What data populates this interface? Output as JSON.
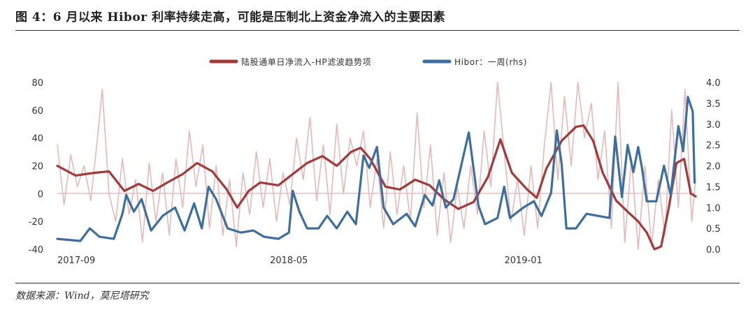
{
  "header": {
    "title": "图 4：6 月以来 Hibor 利率持续走高，可能是压制北上资金净流入的主要因素"
  },
  "footer": {
    "source": "数据来源：Wind，莫尼塔研究"
  },
  "colors": {
    "raw_flow": "#e3b9b9",
    "trend": "#a23a3a",
    "hibor": "#3d6e9e",
    "zero_line": "#e0b3b3"
  },
  "chart_data": {
    "type": "line",
    "x": {
      "start": "2017-09-01",
      "end": "2019-06-30",
      "tick_labels": [
        "2017-09",
        "2018-05",
        "2019-01"
      ],
      "tick_dates": [
        "2017-09-01",
        "2018-05-01",
        "2019-01-01"
      ]
    },
    "y_left": {
      "ylim": [
        -40,
        80
      ],
      "ticks": [
        "-40",
        "-20",
        "0",
        "20",
        "40",
        "60",
        "80"
      ]
    },
    "y_right": {
      "ylim": [
        0,
        4
      ],
      "ticks": [
        "0.0",
        "0.5",
        "1.0",
        "1.5",
        "2.0",
        "2.5",
        "3.0",
        "3.5",
        "4.0"
      ]
    },
    "legend": {
      "position": "top-center",
      "entries": [
        "陆股通单日净流入-HP滤波趋势项",
        "Hibor：一周(rhs)"
      ]
    },
    "series": [
      {
        "name": "陆股通单日净流入-HP滤波趋势项",
        "axis": "left",
        "color": "#a23a3a",
        "points": [
          [
            "2017-09-01",
            20
          ],
          [
            "2017-09-20",
            13
          ],
          [
            "2017-10-10",
            15
          ],
          [
            "2017-10-25",
            16
          ],
          [
            "2017-11-10",
            2
          ],
          [
            "2017-11-25",
            7
          ],
          [
            "2017-12-10",
            2
          ],
          [
            "2017-12-25",
            8
          ],
          [
            "2018-01-10",
            14
          ],
          [
            "2018-01-25",
            22
          ],
          [
            "2018-02-10",
            16
          ],
          [
            "2018-02-25",
            3
          ],
          [
            "2018-03-08",
            -10
          ],
          [
            "2018-03-20",
            2
          ],
          [
            "2018-04-01",
            8
          ],
          [
            "2018-04-20",
            6
          ],
          [
            "2018-05-05",
            14
          ],
          [
            "2018-05-20",
            22
          ],
          [
            "2018-06-05",
            27
          ],
          [
            "2018-06-20",
            20
          ],
          [
            "2018-07-05",
            30
          ],
          [
            "2018-07-15",
            33
          ],
          [
            "2018-07-25",
            25
          ],
          [
            "2018-08-10",
            5
          ],
          [
            "2018-08-25",
            3
          ],
          [
            "2018-09-10",
            10
          ],
          [
            "2018-09-25",
            6
          ],
          [
            "2018-10-10",
            -4
          ],
          [
            "2018-10-25",
            -11
          ],
          [
            "2018-11-10",
            -6
          ],
          [
            "2018-11-25",
            12
          ],
          [
            "2018-12-08",
            39
          ],
          [
            "2018-12-20",
            15
          ],
          [
            "2019-01-05",
            3
          ],
          [
            "2019-01-15",
            -3
          ],
          [
            "2019-01-25",
            18
          ],
          [
            "2019-02-10",
            38
          ],
          [
            "2019-02-25",
            48
          ],
          [
            "2019-03-05",
            49
          ],
          [
            "2019-03-15",
            38
          ],
          [
            "2019-03-25",
            15
          ],
          [
            "2019-04-08",
            -5
          ],
          [
            "2019-04-20",
            -13
          ],
          [
            "2019-05-01",
            -20
          ],
          [
            "2019-05-10",
            -28
          ],
          [
            "2019-05-18",
            -40
          ],
          [
            "2019-05-25",
            -38
          ],
          [
            "2019-06-02",
            -10
          ],
          [
            "2019-06-10",
            22
          ],
          [
            "2019-06-18",
            25
          ],
          [
            "2019-06-25",
            0
          ],
          [
            "2019-06-30",
            -2
          ]
        ]
      },
      {
        "name": "Hibor：一周(rhs)",
        "axis": "right",
        "color": "#3d6e9e",
        "points": [
          [
            "2017-09-01",
            0.25
          ],
          [
            "2017-09-25",
            0.2
          ],
          [
            "2017-10-05",
            0.5
          ],
          [
            "2017-10-15",
            0.3
          ],
          [
            "2017-10-30",
            0.25
          ],
          [
            "2017-11-08",
            0.85
          ],
          [
            "2017-11-12",
            1.3
          ],
          [
            "2017-11-20",
            0.9
          ],
          [
            "2017-11-28",
            1.2
          ],
          [
            "2017-12-08",
            0.45
          ],
          [
            "2017-12-20",
            0.8
          ],
          [
            "2018-01-02",
            1.0
          ],
          [
            "2018-01-12",
            0.45
          ],
          [
            "2018-01-22",
            1.1
          ],
          [
            "2018-01-30",
            0.5
          ],
          [
            "2018-02-06",
            1.5
          ],
          [
            "2018-02-14",
            1.2
          ],
          [
            "2018-02-26",
            0.5
          ],
          [
            "2018-03-12",
            0.4
          ],
          [
            "2018-03-25",
            0.45
          ],
          [
            "2018-04-05",
            0.3
          ],
          [
            "2018-04-20",
            0.25
          ],
          [
            "2018-05-01",
            0.4
          ],
          [
            "2018-05-05",
            1.4
          ],
          [
            "2018-05-12",
            0.9
          ],
          [
            "2018-05-20",
            0.5
          ],
          [
            "2018-06-01",
            0.5
          ],
          [
            "2018-06-10",
            0.8
          ],
          [
            "2018-06-20",
            0.5
          ],
          [
            "2018-07-01",
            0.9
          ],
          [
            "2018-07-10",
            0.6
          ],
          [
            "2018-07-18",
            2.25
          ],
          [
            "2018-07-24",
            1.95
          ],
          [
            "2018-08-01",
            2.45
          ],
          [
            "2018-08-08",
            1.0
          ],
          [
            "2018-08-18",
            0.6
          ],
          [
            "2018-09-01",
            0.85
          ],
          [
            "2018-09-10",
            0.55
          ],
          [
            "2018-09-20",
            1.3
          ],
          [
            "2018-09-28",
            1.05
          ],
          [
            "2018-10-05",
            1.65
          ],
          [
            "2018-10-12",
            1.0
          ],
          [
            "2018-10-20",
            1.2
          ],
          [
            "2018-11-05",
            2.8
          ],
          [
            "2018-11-15",
            1.05
          ],
          [
            "2018-11-22",
            0.6
          ],
          [
            "2018-12-05",
            0.75
          ],
          [
            "2018-12-12",
            1.5
          ],
          [
            "2018-12-18",
            0.75
          ],
          [
            "2019-01-01",
            1.0
          ],
          [
            "2019-01-12",
            1.15
          ],
          [
            "2019-01-20",
            0.8
          ],
          [
            "2019-01-30",
            1.35
          ],
          [
            "2019-02-05",
            2.85
          ],
          [
            "2019-02-10",
            2.05
          ],
          [
            "2019-02-15",
            0.5
          ],
          [
            "2019-02-25",
            0.5
          ],
          [
            "2019-03-08",
            0.85
          ],
          [
            "2019-03-20",
            0.8
          ],
          [
            "2019-04-01",
            0.75
          ],
          [
            "2019-04-07",
            2.7
          ],
          [
            "2019-04-14",
            1.25
          ],
          [
            "2019-04-20",
            2.5
          ],
          [
            "2019-04-26",
            1.85
          ],
          [
            "2019-05-01",
            2.45
          ],
          [
            "2019-05-05",
            1.95
          ],
          [
            "2019-05-10",
            1.15
          ],
          [
            "2019-05-20",
            1.15
          ],
          [
            "2019-05-28",
            2.0
          ],
          [
            "2019-06-04",
            1.3
          ],
          [
            "2019-06-12",
            2.95
          ],
          [
            "2019-06-17",
            2.35
          ],
          [
            "2019-06-22",
            3.65
          ],
          [
            "2019-06-27",
            3.3
          ],
          [
            "2019-06-29",
            1.6
          ]
        ]
      },
      {
        "axis": "left",
        "color": "#e3b9b9",
        "style": "raw daily flow (thin, unlabeled)",
        "points": [
          [
            "2017-09-01",
            35
          ],
          [
            "2017-09-08",
            -8
          ],
          [
            "2017-09-15",
            28
          ],
          [
            "2017-09-22",
            5
          ],
          [
            "2017-09-29",
            20
          ],
          [
            "2017-10-06",
            -5
          ],
          [
            "2017-10-13",
            40
          ],
          [
            "2017-10-18",
            75
          ],
          [
            "2017-10-25",
            0
          ],
          [
            "2017-11-01",
            -20
          ],
          [
            "2017-11-08",
            25
          ],
          [
            "2017-11-15",
            -15
          ],
          [
            "2017-11-22",
            10
          ],
          [
            "2017-11-29",
            -35
          ],
          [
            "2017-12-06",
            22
          ],
          [
            "2017-12-13",
            -20
          ],
          [
            "2017-12-20",
            15
          ],
          [
            "2017-12-27",
            -30
          ],
          [
            "2018-01-03",
            25
          ],
          [
            "2018-01-10",
            -10
          ],
          [
            "2018-01-17",
            45
          ],
          [
            "2018-01-24",
            5
          ],
          [
            "2018-01-31",
            35
          ],
          [
            "2018-02-07",
            -25
          ],
          [
            "2018-02-14",
            20
          ],
          [
            "2018-02-21",
            -30
          ],
          [
            "2018-02-28",
            10
          ],
          [
            "2018-03-07",
            -38
          ],
          [
            "2018-03-14",
            15
          ],
          [
            "2018-03-21",
            -15
          ],
          [
            "2018-03-28",
            30
          ],
          [
            "2018-04-04",
            -10
          ],
          [
            "2018-04-11",
            25
          ],
          [
            "2018-04-18",
            -20
          ],
          [
            "2018-04-25",
            15
          ],
          [
            "2018-05-02",
            -8
          ],
          [
            "2018-05-09",
            40
          ],
          [
            "2018-05-16",
            10
          ],
          [
            "2018-05-23",
            55
          ],
          [
            "2018-05-30",
            -5
          ],
          [
            "2018-06-06",
            35
          ],
          [
            "2018-06-13",
            -15
          ],
          [
            "2018-06-20",
            50
          ],
          [
            "2018-06-27",
            0
          ],
          [
            "2018-07-04",
            40
          ],
          [
            "2018-07-11",
            20
          ],
          [
            "2018-07-18",
            45
          ],
          [
            "2018-07-25",
            -10
          ],
          [
            "2018-08-01",
            25
          ],
          [
            "2018-08-08",
            -25
          ],
          [
            "2018-08-15",
            30
          ],
          [
            "2018-08-22",
            -15
          ],
          [
            "2018-08-29",
            20
          ],
          [
            "2018-09-05",
            -20
          ],
          [
            "2018-09-12",
            58
          ],
          [
            "2018-09-19",
            -10
          ],
          [
            "2018-09-26",
            35
          ],
          [
            "2018-10-03",
            -30
          ],
          [
            "2018-10-10",
            15
          ],
          [
            "2018-10-17",
            -35
          ],
          [
            "2018-10-24",
            5
          ],
          [
            "2018-10-31",
            -25
          ],
          [
            "2018-11-07",
            20
          ],
          [
            "2018-11-14",
            -15
          ],
          [
            "2018-11-21",
            45
          ],
          [
            "2018-11-28",
            5
          ],
          [
            "2018-12-05",
            80
          ],
          [
            "2018-12-12",
            30
          ],
          [
            "2018-12-19",
            -20
          ],
          [
            "2018-12-26",
            10
          ],
          [
            "2019-01-02",
            -30
          ],
          [
            "2019-01-09",
            20
          ],
          [
            "2019-01-16",
            -25
          ],
          [
            "2019-01-23",
            35
          ],
          [
            "2019-01-30",
            80
          ],
          [
            "2019-02-06",
            10
          ],
          [
            "2019-02-13",
            70
          ],
          [
            "2019-02-20",
            20
          ],
          [
            "2019-02-27",
            80
          ],
          [
            "2019-03-06",
            40
          ],
          [
            "2019-03-13",
            65
          ],
          [
            "2019-03-20",
            10
          ],
          [
            "2019-03-27",
            45
          ],
          [
            "2019-04-03",
            -25
          ],
          [
            "2019-04-10",
            80
          ],
          [
            "2019-04-17",
            -35
          ],
          [
            "2019-04-24",
            25
          ],
          [
            "2019-05-01",
            -40
          ],
          [
            "2019-05-08",
            20
          ],
          [
            "2019-05-15",
            -38
          ],
          [
            "2019-05-22",
            10
          ],
          [
            "2019-05-29",
            -30
          ],
          [
            "2019-06-05",
            60
          ],
          [
            "2019-06-12",
            -10
          ],
          [
            "2019-06-19",
            75
          ],
          [
            "2019-06-26",
            -20
          ],
          [
            "2019-06-30",
            10
          ]
        ]
      }
    ]
  }
}
